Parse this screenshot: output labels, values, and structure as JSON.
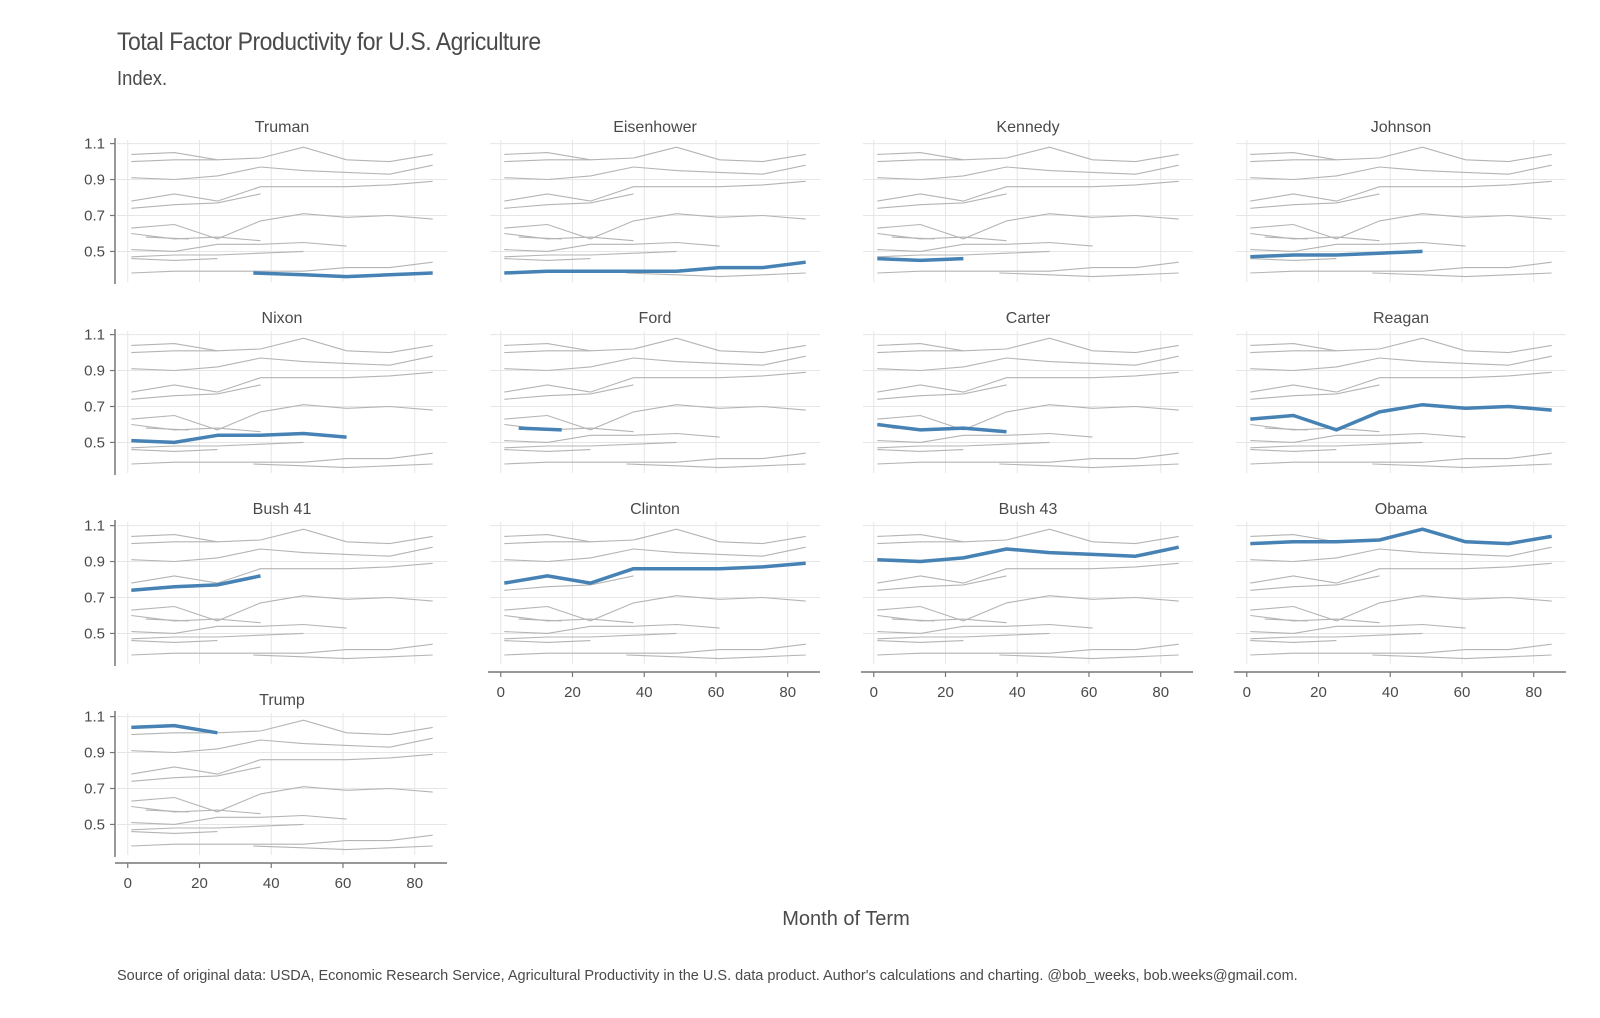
{
  "title": "Total Factor Productivity for U.S. Agriculture",
  "subtitle": "Index.",
  "xlabel": "Month of Term",
  "source": "Source of original data: USDA, Economic Research Service, Agricultural Productivity in the U.S. data product. Author's calculations and charting. @bob_weeks, bob.weeks@gmail.com.",
  "colors": {
    "highlight": "#4682b4",
    "background_series": "#b4b4b4",
    "grid": "#e6e6e6",
    "axis": "#777777"
  },
  "chart_data": {
    "type": "line",
    "layout": "small-multiples",
    "xlabel": "Month of Term",
    "ylabel": "",
    "xlim": [
      -3,
      89
    ],
    "ylim": [
      0.33,
      1.12
    ],
    "x_ticks": [
      0,
      20,
      40,
      60,
      80
    ],
    "y_ticks": [
      0.5,
      0.7,
      0.9,
      1.1
    ],
    "y_tick_labels": [
      "0.5",
      "0.7",
      "0.9",
      "1.1"
    ],
    "grid": true,
    "legend": "none",
    "panels": [
      "Truman",
      "Eisenhower",
      "Kennedy",
      "Johnson",
      "Nixon",
      "Ford",
      "Carter",
      "Reagan",
      "Bush 41",
      "Clinton",
      "Bush 43",
      "Obama",
      "Trump"
    ],
    "series": [
      {
        "name": "Truman",
        "x": [
          35,
          49,
          61,
          73,
          85
        ],
        "y": [
          0.38,
          0.37,
          0.36,
          0.37,
          0.38
        ]
      },
      {
        "name": "Eisenhower",
        "x": [
          1,
          13,
          25,
          37,
          49,
          61,
          73,
          85
        ],
        "y": [
          0.38,
          0.39,
          0.39,
          0.39,
          0.39,
          0.41,
          0.41,
          0.44
        ]
      },
      {
        "name": "Kennedy",
        "x": [
          1,
          13,
          25
        ],
        "y": [
          0.46,
          0.45,
          0.46
        ]
      },
      {
        "name": "Johnson",
        "x": [
          1,
          13,
          25,
          37,
          49
        ],
        "y": [
          0.47,
          0.48,
          0.48,
          0.49,
          0.5
        ]
      },
      {
        "name": "Nixon",
        "x": [
          1,
          13,
          25,
          37,
          49,
          61
        ],
        "y": [
          0.51,
          0.5,
          0.54,
          0.54,
          0.55,
          0.53
        ]
      },
      {
        "name": "Ford",
        "x": [
          5,
          17
        ],
        "y": [
          0.58,
          0.57
        ]
      },
      {
        "name": "Carter",
        "x": [
          1,
          13,
          25,
          37
        ],
        "y": [
          0.6,
          0.57,
          0.58,
          0.56
        ]
      },
      {
        "name": "Reagan",
        "x": [
          1,
          13,
          25,
          37,
          49,
          61,
          73,
          85
        ],
        "y": [
          0.63,
          0.65,
          0.57,
          0.67,
          0.71,
          0.69,
          0.7,
          0.68
        ]
      },
      {
        "name": "Bush 41",
        "x": [
          1,
          13,
          25,
          37
        ],
        "y": [
          0.74,
          0.76,
          0.77,
          0.82
        ]
      },
      {
        "name": "Clinton",
        "x": [
          1,
          13,
          25,
          37,
          49,
          61,
          73,
          85
        ],
        "y": [
          0.78,
          0.82,
          0.78,
          0.86,
          0.86,
          0.86,
          0.87,
          0.89
        ]
      },
      {
        "name": "Bush 43",
        "x": [
          1,
          13,
          25,
          37,
          49,
          61,
          73,
          85
        ],
        "y": [
          0.91,
          0.9,
          0.92,
          0.97,
          0.95,
          0.94,
          0.93,
          0.98
        ]
      },
      {
        "name": "Obama",
        "x": [
          1,
          13,
          25,
          37,
          49,
          61,
          73,
          85
        ],
        "y": [
          1.0,
          1.01,
          1.01,
          1.02,
          1.08,
          1.01,
          1.0,
          1.04
        ]
      },
      {
        "name": "Trump",
        "x": [
          1,
          13,
          25
        ],
        "y": [
          1.04,
          1.05,
          1.01
        ]
      }
    ]
  }
}
